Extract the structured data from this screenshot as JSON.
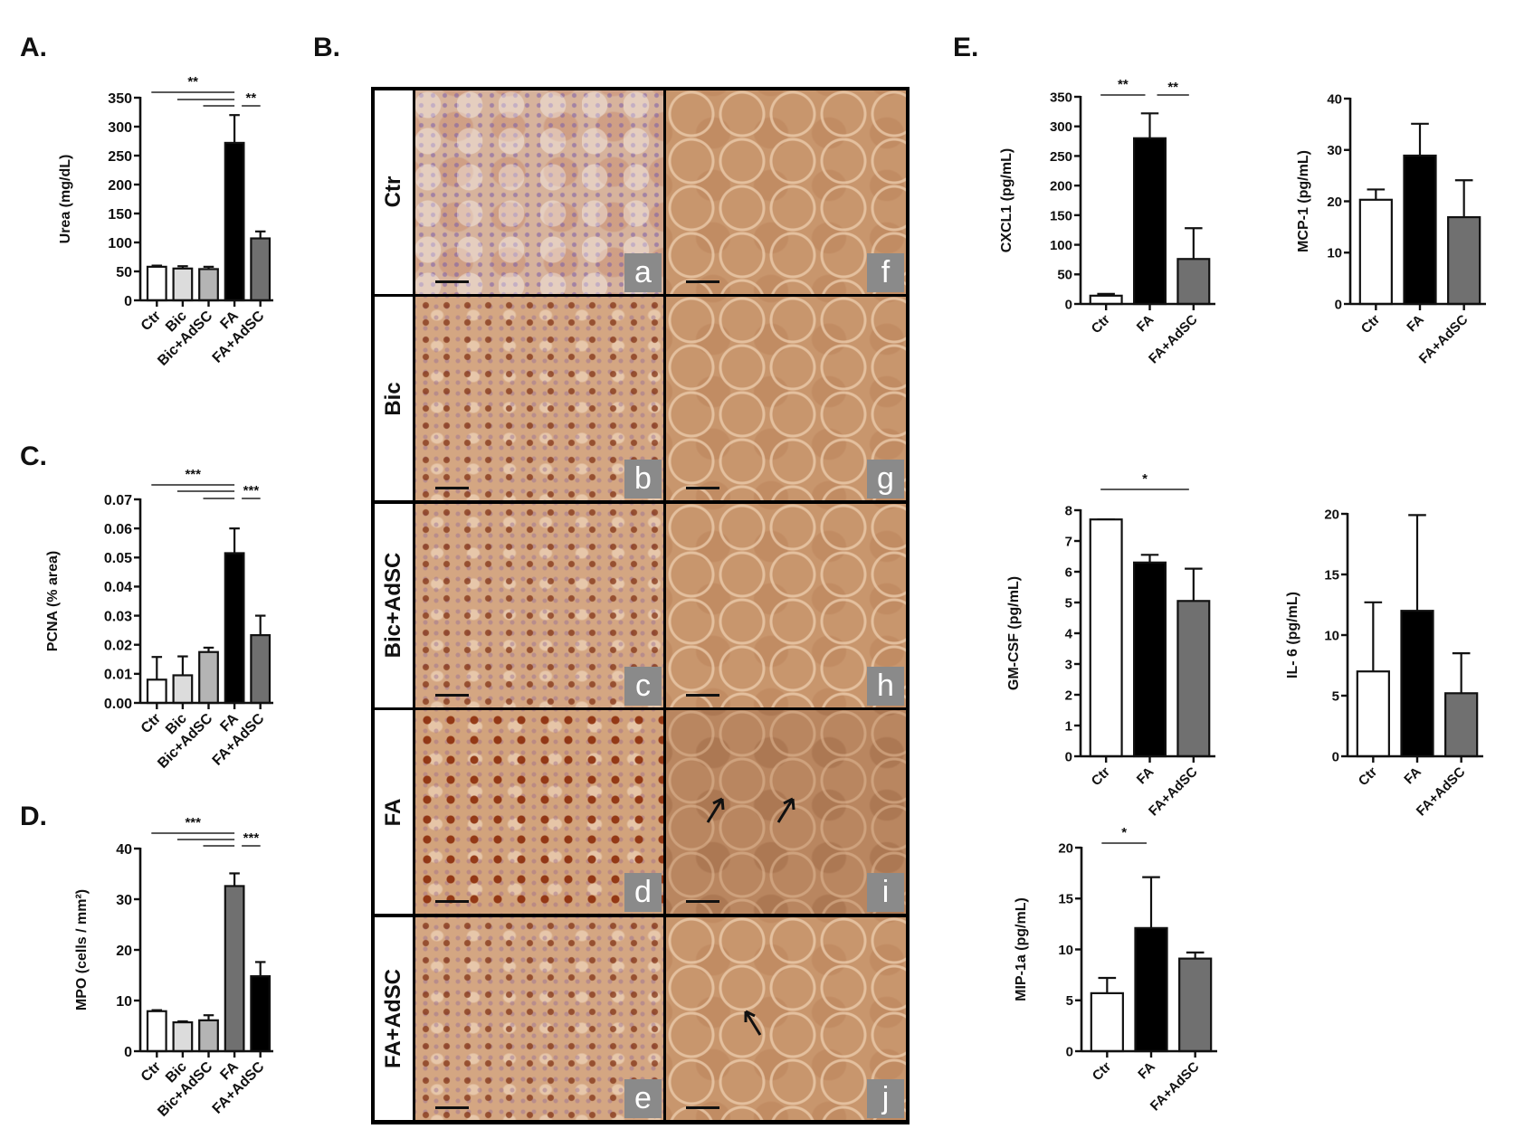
{
  "panel_labels": {
    "A": "A.",
    "B": "B.",
    "C": "C.",
    "D": "D.",
    "E": "E."
  },
  "histology": {
    "rows": [
      "Ctr",
      "Bic",
      "Bic+AdSC",
      "FA",
      "FA+AdSC"
    ],
    "letters": [
      [
        "a",
        "f"
      ],
      [
        "b",
        "g"
      ],
      [
        "c",
        "h"
      ],
      [
        "d",
        "i"
      ],
      [
        "e",
        "j"
      ]
    ],
    "arrows": {
      "i": 2,
      "j": 1
    }
  },
  "chart_data": [
    {
      "id": "A",
      "type": "bar",
      "title": "",
      "xlabel": "",
      "ylabel": "Urea (mg/dL)",
      "categories": [
        "Ctr",
        "Bic",
        "Bic+AdSC",
        "FA",
        "FA+AdSC"
      ],
      "values": [
        58,
        55,
        54,
        272,
        107
      ],
      "error_upper": [
        60,
        59,
        58,
        320,
        119
      ],
      "colors": [
        "#ffffff",
        "#dcdcdc",
        "#b4b4b4",
        "#000000",
        "#707070"
      ],
      "ylim": [
        0,
        350
      ],
      "yticks": [
        "0",
        "50",
        "100",
        "150",
        "200",
        "250",
        "300",
        "350"
      ],
      "significance": [
        {
          "from": "Ctr",
          "to": "FA",
          "label": "**"
        },
        {
          "from": "Bic",
          "to": "FA",
          "label": ""
        },
        {
          "from": "Bic+AdSC",
          "to": "FA",
          "label": ""
        },
        {
          "from": "FA",
          "to": "FA+AdSC",
          "label": "**"
        }
      ]
    },
    {
      "id": "C",
      "type": "bar",
      "title": "",
      "xlabel": "",
      "ylabel": "PCNA (% area)",
      "categories": [
        "Ctr",
        "Bic",
        "Bic+AdSC",
        "FA",
        "FA+AdSC"
      ],
      "values": [
        0.008,
        0.0095,
        0.0175,
        0.0515,
        0.0233
      ],
      "error_upper": [
        0.0158,
        0.016,
        0.019,
        0.06,
        0.03
      ],
      "colors": [
        "#ffffff",
        "#dcdcdc",
        "#b4b4b4",
        "#000000",
        "#707070"
      ],
      "ylim": [
        0,
        0.07
      ],
      "yticks": [
        "0.00",
        "0.01",
        "0.02",
        "0.03",
        "0.04",
        "0.05",
        "0.06",
        "0.07"
      ],
      "significance": [
        {
          "from": "Ctr",
          "to": "FA",
          "label": "***"
        },
        {
          "from": "Bic",
          "to": "FA",
          "label": ""
        },
        {
          "from": "Bic+AdSC",
          "to": "FA",
          "label": ""
        },
        {
          "from": "FA",
          "to": "FA+AdSC",
          "label": "***"
        }
      ]
    },
    {
      "id": "D",
      "type": "bar",
      "title": "",
      "xlabel": "",
      "ylabel": "MPO (cells / mm²)",
      "categories": [
        "Ctr",
        "Bic",
        "Bic+AdSC",
        "FA",
        "FA+AdSC"
      ],
      "values": [
        7.9,
        5.7,
        6.1,
        32.6,
        14.8
      ],
      "error_upper": [
        8.1,
        5.9,
        7.1,
        35.1,
        17.6
      ],
      "colors": [
        "#ffffff",
        "#dcdcdc",
        "#b4b4b4",
        "#707070",
        "#000000"
      ],
      "ylim": [
        0,
        40
      ],
      "yticks": [
        "0",
        "10",
        "20",
        "30",
        "40"
      ],
      "significance": [
        {
          "from": "Ctr",
          "to": "FA",
          "label": "***"
        },
        {
          "from": "Bic",
          "to": "FA",
          "label": ""
        },
        {
          "from": "Bic+AdSC",
          "to": "FA",
          "label": ""
        },
        {
          "from": "FA",
          "to": "FA+AdSC",
          "label": "***"
        }
      ]
    },
    {
      "id": "CXCL1",
      "type": "bar",
      "title": "",
      "xlabel": "",
      "ylabel": "CXCL1 (pg/mL)",
      "categories": [
        "Ctr",
        "FA",
        "FA+AdSC"
      ],
      "values": [
        14,
        280,
        76
      ],
      "error_upper": [
        17,
        322,
        128
      ],
      "colors": [
        "#ffffff",
        "#000000",
        "#707070"
      ],
      "ylim": [
        0,
        350
      ],
      "yticks": [
        "0",
        "50",
        "100",
        "150",
        "200",
        "250",
        "300",
        "350"
      ],
      "significance": [
        {
          "from": "Ctr",
          "to": "FA",
          "label": "**"
        },
        {
          "from": "FA",
          "to": "FA+AdSC",
          "label": "**"
        }
      ]
    },
    {
      "id": "MCP1",
      "type": "bar",
      "title": "",
      "xlabel": "",
      "ylabel": "MCP-1 (pg/mL)",
      "categories": [
        "Ctr",
        "FA",
        "FA+AdSC"
      ],
      "values": [
        20.3,
        28.9,
        16.9
      ],
      "error_upper": [
        22.3,
        35.1,
        24.1
      ],
      "colors": [
        "#ffffff",
        "#000000",
        "#707070"
      ],
      "ylim": [
        0,
        40
      ],
      "yticks": [
        "0",
        "10",
        "20",
        "30",
        "40"
      ],
      "significance": []
    },
    {
      "id": "GMCSF",
      "type": "bar",
      "title": "",
      "xlabel": "",
      "ylabel": "GM-CSF (pg/mL)",
      "categories": [
        "Ctr",
        "FA",
        "FA+AdSC"
      ],
      "values": [
        7.7,
        6.3,
        5.05
      ],
      "error_upper": [
        7.7,
        6.55,
        6.1
      ],
      "colors": [
        "#ffffff",
        "#000000",
        "#707070"
      ],
      "ylim": [
        0,
        8
      ],
      "yticks": [
        "0",
        "1",
        "2",
        "3",
        "4",
        "5",
        "6",
        "7",
        "8"
      ],
      "significance": [
        {
          "from": "Ctr",
          "to": "FA+AdSC",
          "label": "*"
        }
      ]
    },
    {
      "id": "IL6",
      "type": "bar",
      "title": "",
      "xlabel": "",
      "ylabel": "IL- 6 (pg/mL)",
      "categories": [
        "Ctr",
        "FA",
        "FA+AdSC"
      ],
      "values": [
        7.0,
        12.0,
        5.2
      ],
      "error_upper": [
        12.7,
        19.9,
        8.5
      ],
      "colors": [
        "#ffffff",
        "#000000",
        "#707070"
      ],
      "ylim": [
        0,
        20
      ],
      "yticks": [
        "0",
        "5",
        "10",
        "15",
        "20"
      ],
      "significance": []
    },
    {
      "id": "MIP1a",
      "type": "bar",
      "title": "",
      "xlabel": "",
      "ylabel": "MIP-1a (pg/mL)",
      "categories": [
        "Ctr",
        "FA",
        "FA+AdSC"
      ],
      "values": [
        5.7,
        12.1,
        9.1
      ],
      "error_upper": [
        7.2,
        17.1,
        9.7
      ],
      "colors": [
        "#ffffff",
        "#000000",
        "#707070"
      ],
      "ylim": [
        0,
        20
      ],
      "yticks": [
        "0",
        "5",
        "10",
        "15",
        "20"
      ],
      "significance": [
        {
          "from": "Ctr",
          "to": "FA",
          "label": "*"
        }
      ]
    }
  ]
}
